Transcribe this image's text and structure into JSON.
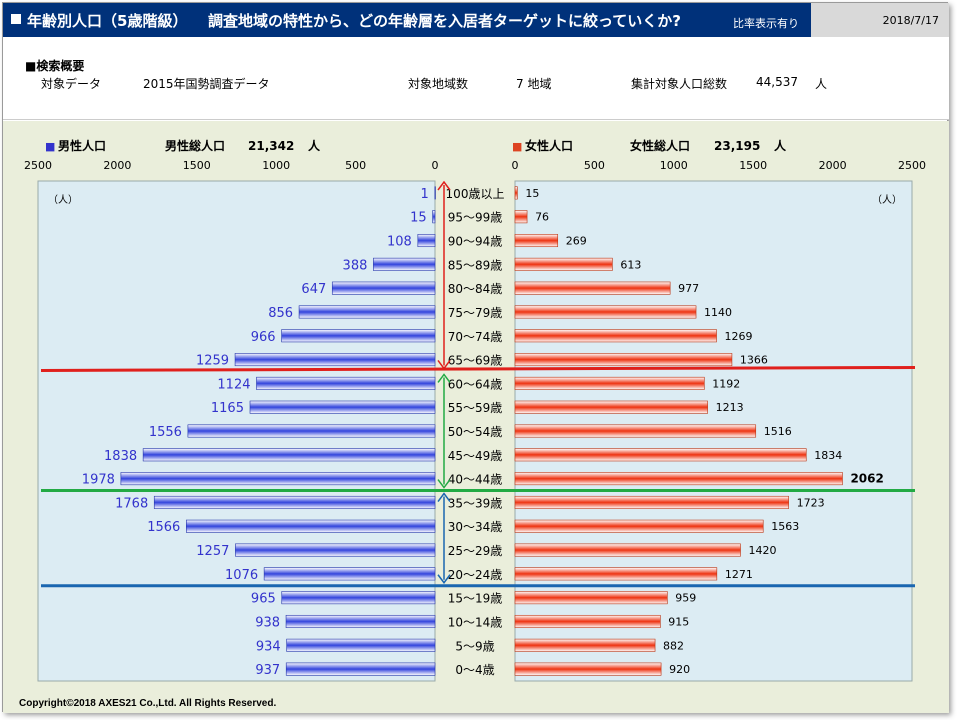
{
  "header": {
    "title": "年齢別人口（5歳階級）",
    "subtitle": "調査地域の特性から、どの年齢層を入居者ターゲットに絞っていくか?",
    "tag": "比率表示有り",
    "date": "2018/7/17"
  },
  "summary": {
    "section_label": "■検索概要",
    "data_label": "対象データ",
    "data_value": "2015年国勢調査データ",
    "area_label": "対象地域数",
    "area_value": "7 地域",
    "total_label": "集計対象人口総数",
    "total_value": "44,537",
    "total_unit": "人"
  },
  "colors": {
    "male": "#3333cc",
    "female": "#dd4422",
    "line_red": "#e0201c",
    "line_green": "#22aa44",
    "line_blue": "#1a66b0",
    "panel_bg": "#eaeedb",
    "plot_bg": "#dcecf3"
  },
  "chart_data": {
    "type": "bar",
    "layout": "population-pyramid",
    "unit": "（人）",
    "xlim": [
      0,
      2500
    ],
    "ticks": [
      "2500",
      "2000",
      "1500",
      "1000",
      "500",
      "0"
    ],
    "ticks_right": [
      "0",
      "500",
      "1000",
      "1500",
      "2000",
      "2500"
    ],
    "male_header": {
      "marker": "■",
      "label": "男性人口",
      "total_label": "男性総人口",
      "total": "21,342",
      "unit": "人"
    },
    "female_header": {
      "marker": "■",
      "label": "女性人口",
      "total_label": "女性総人口",
      "total": "23,195",
      "unit": "人"
    },
    "categories": [
      "100歳以上",
      "95～99歳",
      "90～94歳",
      "85～89歳",
      "80～84歳",
      "75～79歳",
      "70～74歳",
      "65～69歳",
      "60～64歳",
      "55～59歳",
      "50～54歳",
      "45～49歳",
      "40～44歳",
      "35～39歳",
      "30～34歳",
      "25～29歳",
      "20～24歳",
      "15～19歳",
      "10～14歳",
      "5～9歳",
      "0～4歳"
    ],
    "series": [
      {
        "name": "男性人口",
        "values": [
          1,
          15,
          108,
          388,
          647,
          856,
          966,
          1259,
          1124,
          1165,
          1556,
          1838,
          1978,
          1768,
          1566,
          1257,
          1076,
          965,
          938,
          934,
          937
        ]
      },
      {
        "name": "女性人口",
        "values": [
          15,
          76,
          269,
          613,
          977,
          1140,
          1269,
          1366,
          1192,
          1213,
          1516,
          1834,
          2062,
          1723,
          1563,
          1420,
          1271,
          959,
          915,
          882,
          920
        ]
      }
    ],
    "highlight_max": "2062"
  },
  "footer": "Copyright©2018 AXES21 Co.,Ltd.  All Rights Reserved."
}
